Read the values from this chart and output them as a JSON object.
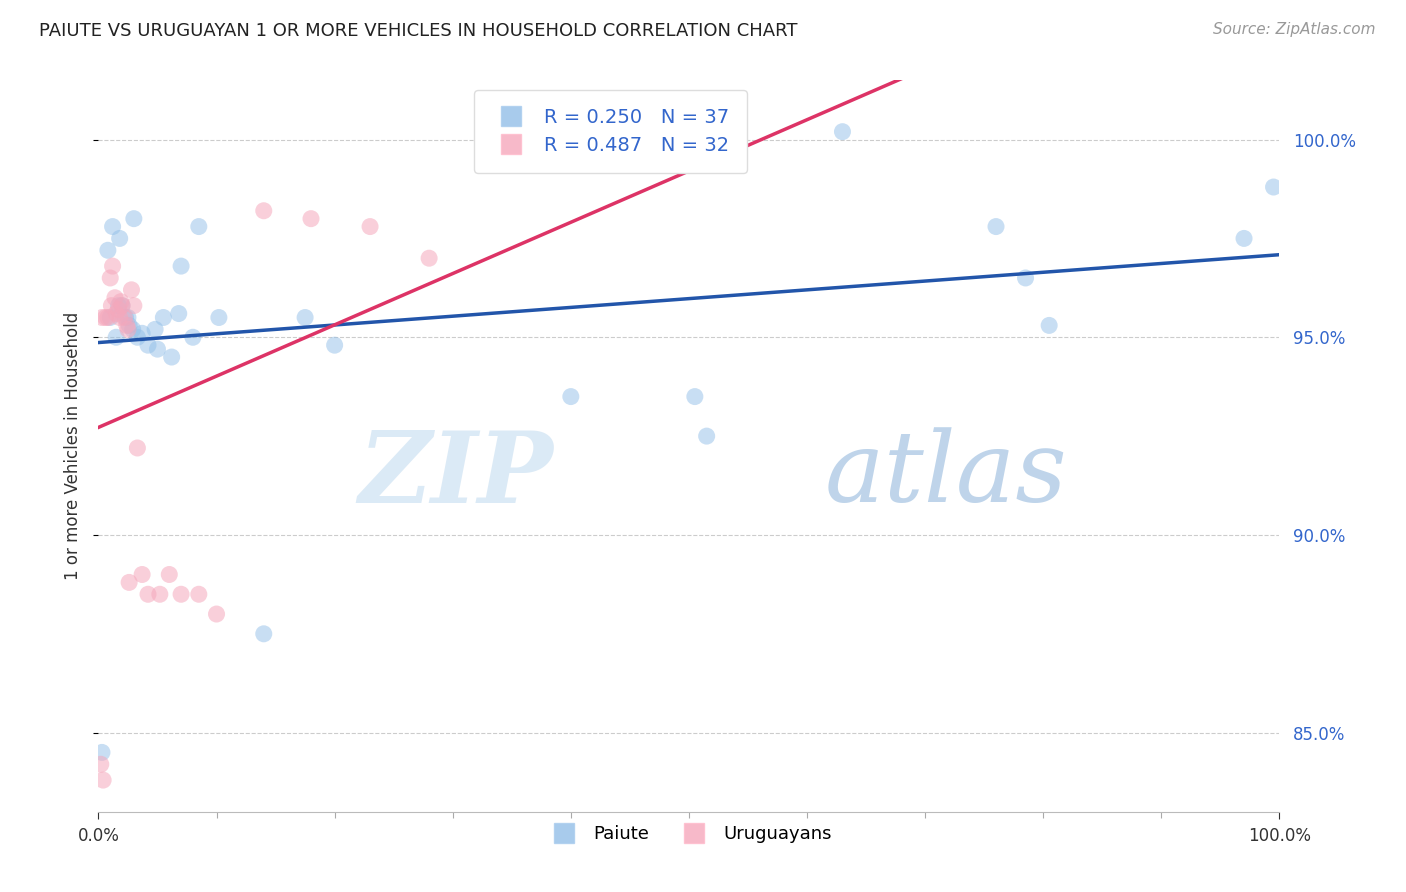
{
  "title": "PAIUTE VS URUGUAYAN 1 OR MORE VEHICLES IN HOUSEHOLD CORRELATION CHART",
  "source": "Source: ZipAtlas.com",
  "ylabel": "1 or more Vehicles in Household",
  "xlim": [
    0.0,
    100.0
  ],
  "ylim": [
    83.0,
    101.5
  ],
  "ytick_values": [
    85.0,
    90.0,
    95.0,
    100.0
  ],
  "paiute_color": "#92bfe8",
  "uruguayan_color": "#f5a8bc",
  "paiute_line_color": "#2255aa",
  "uruguayan_line_color": "#dd3366",
  "paiute_R": "0.250",
  "paiute_N": "37",
  "uruguayan_R": "0.487",
  "uruguayan_N": "32",
  "background_color": "#ffffff",
  "grid_color": "#cccccc",
  "watermark_zip": "ZIP",
  "watermark_atlas": "atlas",
  "paiute_x": [
    0.3,
    0.8,
    1.2,
    1.5,
    1.8,
    2.0,
    2.3,
    2.6,
    2.9,
    3.3,
    3.7,
    4.2,
    5.0,
    5.5,
    6.2,
    7.0,
    8.5,
    10.2,
    14.0,
    17.5,
    50.5,
    51.5,
    76.0,
    78.5,
    80.5,
    97.0,
    99.5,
    1.0,
    1.7,
    2.5,
    3.0,
    4.8,
    6.8,
    8.0,
    20.0,
    40.0,
    63.0
  ],
  "paiute_y": [
    84.5,
    97.2,
    97.8,
    95.0,
    97.5,
    95.8,
    95.5,
    95.3,
    95.2,
    95.0,
    95.1,
    94.8,
    94.7,
    95.5,
    94.5,
    96.8,
    97.8,
    95.5,
    87.5,
    95.5,
    93.5,
    92.5,
    97.8,
    96.5,
    95.3,
    97.5,
    98.8,
    95.5,
    95.8,
    95.5,
    98.0,
    95.2,
    95.6,
    95.0,
    94.8,
    93.5,
    100.2
  ],
  "uruguayan_x": [
    0.2,
    0.4,
    0.6,
    0.8,
    1.0,
    1.2,
    1.4,
    1.5,
    1.7,
    1.8,
    2.0,
    2.2,
    2.4,
    2.6,
    2.8,
    3.0,
    3.3,
    3.7,
    4.2,
    5.2,
    6.0,
    7.0,
    8.5,
    10.0,
    14.0,
    18.0,
    23.0,
    28.0,
    0.3,
    1.1,
    1.9,
    2.5
  ],
  "uruguayan_y": [
    84.2,
    83.8,
    95.5,
    95.5,
    96.5,
    96.8,
    96.0,
    95.6,
    95.7,
    95.5,
    95.8,
    95.5,
    95.3,
    88.8,
    96.2,
    95.8,
    92.2,
    89.0,
    88.5,
    88.5,
    89.0,
    88.5,
    88.5,
    88.0,
    98.2,
    98.0,
    97.8,
    97.0,
    95.5,
    95.8,
    95.9,
    95.2
  ]
}
